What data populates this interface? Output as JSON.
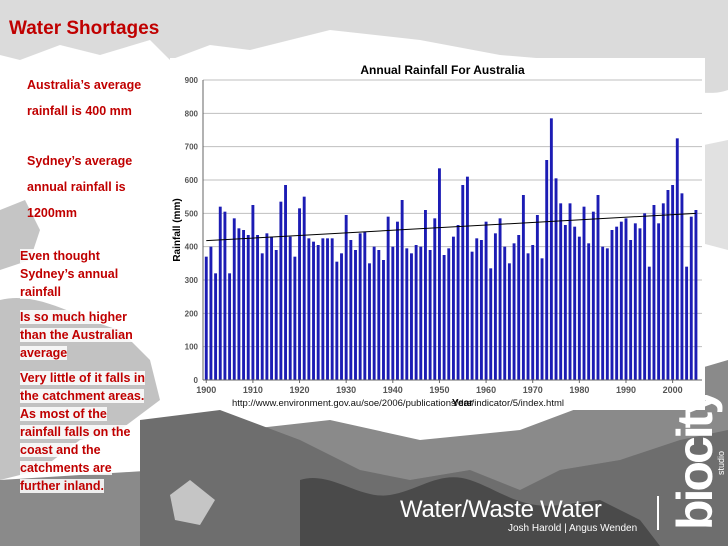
{
  "slide": {
    "title": "Water Shortages",
    "box1_line1": "Australia’s average",
    "box1_line2": "rainfall is 400 mm",
    "box2_line1": "Sydney’s average",
    "box2_line2": "annual rainfall is",
    "box2_line3": "1200mm",
    "note1": [
      "Even thought",
      "Sydney’s annual",
      "rainfall"
    ],
    "note2": [
      "Is so much higher",
      "than the Australian",
      "average"
    ],
    "note3": [
      "Very little of it falls in",
      "the catchment areas.",
      "As most of the",
      "rainfall falls on the",
      "coast and the",
      "catchments are",
      "further inland."
    ],
    "source_url": "http://www.environment.gov.au/soe/2006/publications/drs/indicator/5/index.html",
    "brand": "Water/Waste Water",
    "authors": "Josh Harold | Angus Wenden",
    "logo_text": "biocity",
    "logo_sub": "studio"
  },
  "colors": {
    "title": "#c00000",
    "bar": "#1c1cb4",
    "trend": "#000000",
    "grid": "#bfbfbf"
  },
  "chart_data": {
    "type": "bar",
    "title": "Annual Rainfall For Australia",
    "xlabel": "Year",
    "ylabel": "Rainfall (mm)",
    "ylim": [
      0,
      900
    ],
    "yticks": [
      0,
      100,
      200,
      300,
      400,
      500,
      600,
      700,
      800,
      900
    ],
    "xticks": [
      1900,
      1910,
      1920,
      1930,
      1940,
      1950,
      1960,
      1970,
      1980,
      1990,
      2000
    ],
    "grid": true,
    "x": [
      1900,
      1901,
      1902,
      1903,
      1904,
      1905,
      1906,
      1907,
      1908,
      1909,
      1910,
      1911,
      1912,
      1913,
      1914,
      1915,
      1916,
      1917,
      1918,
      1919,
      1920,
      1921,
      1922,
      1923,
      1924,
      1925,
      1926,
      1927,
      1928,
      1929,
      1930,
      1931,
      1932,
      1933,
      1934,
      1935,
      1936,
      1937,
      1938,
      1939,
      1940,
      1941,
      1942,
      1943,
      1944,
      1945,
      1946,
      1947,
      1948,
      1949,
      1950,
      1951,
      1952,
      1953,
      1954,
      1955,
      1956,
      1957,
      1958,
      1959,
      1960,
      1961,
      1962,
      1963,
      1964,
      1965,
      1966,
      1967,
      1968,
      1969,
      1970,
      1971,
      1972,
      1973,
      1974,
      1975,
      1976,
      1977,
      1978,
      1979,
      1980,
      1981,
      1982,
      1983,
      1984,
      1985,
      1986,
      1987,
      1988,
      1989,
      1990,
      1991,
      1992,
      1993,
      1994,
      1995,
      1996,
      1997,
      1998,
      1999,
      2000,
      2001,
      2002,
      2003,
      2004,
      2005
    ],
    "values": [
      370,
      400,
      320,
      520,
      505,
      320,
      485,
      455,
      450,
      435,
      525,
      435,
      380,
      440,
      430,
      390,
      535,
      585,
      430,
      370,
      515,
      550,
      425,
      415,
      405,
      425,
      425,
      425,
      355,
      380,
      495,
      420,
      390,
      440,
      445,
      350,
      400,
      390,
      360,
      490,
      400,
      475,
      540,
      395,
      380,
      405,
      400,
      510,
      390,
      485,
      635,
      375,
      395,
      430,
      465,
      585,
      610,
      385,
      425,
      420,
      475,
      335,
      440,
      485,
      400,
      350,
      410,
      435,
      555,
      380,
      405,
      495,
      365,
      660,
      785,
      605,
      530,
      465,
      530,
      460,
      430,
      520,
      410,
      505,
      555,
      400,
      395,
      450,
      460,
      475,
      485,
      420,
      470,
      455,
      500,
      340,
      525,
      470,
      530,
      570,
      585,
      725,
      560,
      340,
      490,
      510
    ],
    "trend": {
      "start": 418,
      "end": 500
    }
  }
}
